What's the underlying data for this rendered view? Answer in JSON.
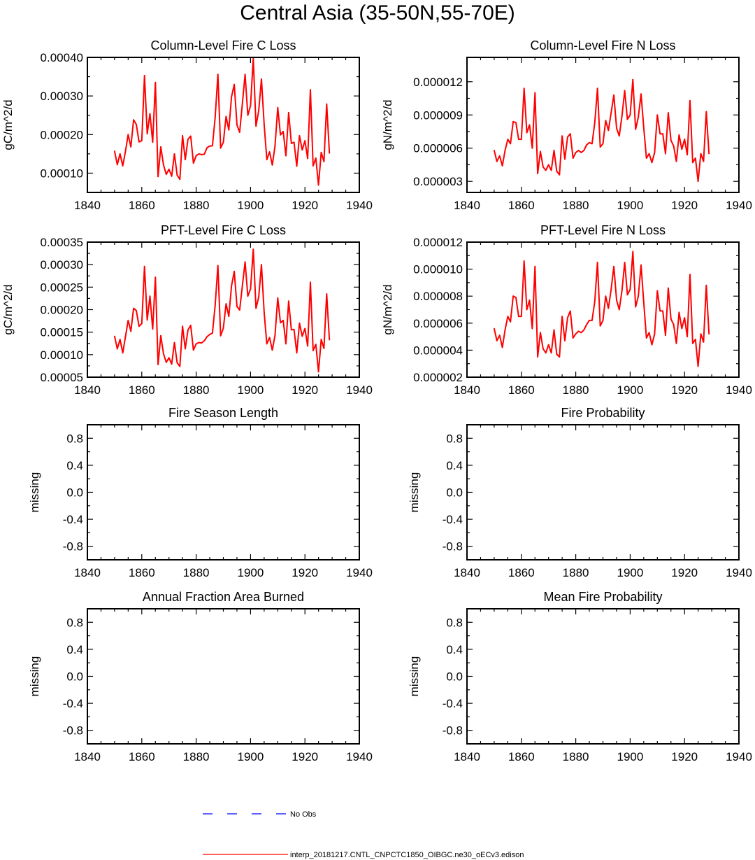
{
  "title": "Central Asia (35-50N,55-70E)",
  "colors": {
    "model": "#ff0000",
    "obs": "#0000ff",
    "axis": "#000000"
  },
  "legend": {
    "obs_label": "No Obs",
    "model_label": "interp_20181217.CNTL_CNPCTC1850_OIBGC.ne30_oECv3.edison"
  },
  "chart_data": [
    {
      "type": "line",
      "title": "Column-Level Fire C Loss",
      "ylabel": "gC/m^2/d",
      "xlim": [
        1840,
        1940
      ],
      "ylim": [
        5e-05,
        0.0004
      ],
      "xticks": [
        1840,
        1860,
        1880,
        1900,
        1920,
        1940
      ],
      "xtick_labels": [
        "1840",
        "1860",
        "1880",
        "1900",
        "1920",
        "1940"
      ],
      "yticks": [
        0.0001,
        0.0002,
        0.0003,
        0.0004
      ],
      "ytick_labels": [
        "0.00010",
        "0.00020",
        "0.00030",
        "0.00040"
      ],
      "series": [
        {
          "name": "interp_20181217.CNTL_CNPCTC1850_OIBGC.ne30_oECv3.edison",
          "x": [
            1850,
            1851,
            1852,
            1853,
            1854,
            1855,
            1856,
            1857,
            1858,
            1859,
            1860,
            1861,
            1862,
            1863,
            1864,
            1865,
            1866,
            1867,
            1868,
            1869,
            1870,
            1871,
            1872,
            1873,
            1874,
            1875,
            1876,
            1877,
            1878,
            1879,
            1880,
            1881,
            1882,
            1883,
            1884,
            1885,
            1886,
            1887,
            1888,
            1889,
            1890,
            1891,
            1892,
            1893,
            1894,
            1895,
            1896,
            1897,
            1898,
            1899,
            1900,
            1901,
            1902,
            1903,
            1904,
            1905,
            1906,
            1907,
            1908,
            1909,
            1910,
            1911,
            1912,
            1913,
            1914,
            1915,
            1916,
            1917,
            1918,
            1919,
            1920,
            1921,
            1922,
            1923,
            1924,
            1925,
            1926,
            1927,
            1928,
            1929
          ],
          "y": [
            0.000157,
            0.000122,
            0.00015,
            0.000119,
            0.000157,
            0.0002,
            0.000168,
            0.000238,
            0.000226,
            0.000181,
            0.000184,
            0.000353,
            0.000202,
            0.000254,
            0.00018,
            0.000335,
            9.1e-05,
            0.000168,
            0.000121,
            9.7e-05,
            0.00011,
            9.2e-05,
            0.00015,
            9.5e-05,
            8.4e-05,
            0.000197,
            0.000135,
            0.000188,
            0.000196,
            0.000126,
            0.000145,
            0.00015,
            0.000148,
            0.000149,
            0.000166,
            0.00017,
            0.000171,
            0.000245,
            0.000356,
            0.000165,
            0.00018,
            0.000247,
            0.000212,
            0.000298,
            0.00033,
            0.000225,
            0.000206,
            0.00028,
            0.000356,
            0.00025,
            0.000275,
            0.000397,
            0.000222,
            0.000262,
            0.000344,
            0.000225,
            0.000135,
            0.000155,
            0.000121,
            0.00017,
            0.00027,
            0.000199,
            0.000208,
            0.000145,
            0.000257,
            0.000177,
            0.00018,
            0.000118,
            0.000197,
            0.00016,
            0.000184,
            0.000138,
            0.000316,
            0.000119,
            0.000139,
            6.9e-05,
            0.000154,
            0.00013,
            0.000279,
            0.000152
          ]
        }
      ]
    },
    {
      "type": "line",
      "title": "Column-Level Fire N Loss",
      "ylabel": "gN/m^2/d",
      "xlim": [
        1840,
        1940
      ],
      "ylim": [
        2e-06,
        1.42e-05
      ],
      "xticks": [
        1840,
        1860,
        1880,
        1900,
        1920,
        1940
      ],
      "xtick_labels": [
        "1840",
        "1860",
        "1880",
        "1900",
        "1920",
        "1940"
      ],
      "yticks": [
        3e-06,
        6e-06,
        9e-06,
        1.2e-05
      ],
      "ytick_labels": [
        "0.000003",
        "0.000006",
        "0.000009",
        "0.000012"
      ],
      "series": [
        {
          "name": "interp_20181217.CNTL_CNPCTC1850_OIBGC.ne30_oECv3.edison",
          "x": [
            1850,
            1851,
            1852,
            1853,
            1854,
            1855,
            1856,
            1857,
            1858,
            1859,
            1860,
            1861,
            1862,
            1863,
            1864,
            1865,
            1866,
            1867,
            1868,
            1869,
            1870,
            1871,
            1872,
            1873,
            1874,
            1875,
            1876,
            1877,
            1878,
            1879,
            1880,
            1881,
            1882,
            1883,
            1884,
            1885,
            1886,
            1887,
            1888,
            1889,
            1890,
            1891,
            1892,
            1893,
            1894,
            1895,
            1896,
            1897,
            1898,
            1899,
            1900,
            1901,
            1902,
            1903,
            1904,
            1905,
            1906,
            1907,
            1908,
            1909,
            1910,
            1911,
            1912,
            1913,
            1914,
            1915,
            1916,
            1917,
            1918,
            1919,
            1920,
            1921,
            1922,
            1923,
            1924,
            1925,
            1926,
            1927,
            1928,
            1929
          ],
          "y": [
            5.8e-06,
            4.8e-06,
            5.3e-06,
            4.4e-06,
            5.8e-06,
            6.8e-06,
            6.4e-06,
            8.4e-06,
            8.3e-06,
            6.8e-06,
            6.8e-06,
            1.14e-05,
            7.4e-06,
            8.1e-06,
            6e-06,
            1.1e-05,
            3.7e-06,
            5.7e-06,
            4.3e-06,
            4e-06,
            4.5e-06,
            4e-06,
            5.8e-06,
            3.9e-06,
            3.6e-06,
            7.1e-06,
            5e-06,
            7e-06,
            7.3e-06,
            5.1e-06,
            5.6e-06,
            5.8e-06,
            5.6e-06,
            5.8e-06,
            6.3e-06,
            6.5e-06,
            6.4e-06,
            8.3e-06,
            1.14e-05,
            6.1e-06,
            6.4e-06,
            8.5e-06,
            7.6e-06,
            9.2e-06,
            1.08e-05,
            7.8e-06,
            7.1e-06,
            8.9e-06,
            1.12e-05,
            8.6e-06,
            9e-06,
            1.22e-05,
            7.7e-06,
            8.8e-06,
            1.09e-05,
            7.8e-06,
            5.1e-06,
            5.5e-06,
            4.7e-06,
            5.6e-06,
            9e-06,
            7.3e-06,
            7.3e-06,
            5.5e-06,
            9.2e-06,
            6.7e-06,
            6.2e-06,
            4.8e-06,
            7.2e-06,
            5.9e-06,
            6.8e-06,
            5.4e-06,
            1.03e-05,
            4.7e-06,
            5.1e-06,
            3e-06,
            5.5e-06,
            4.8e-06,
            9.3e-06,
            5.5e-06
          ]
        }
      ]
    },
    {
      "type": "line",
      "title": "PFT-Level Fire C Loss",
      "ylabel": "gC/m^2/d",
      "xlim": [
        1840,
        1940
      ],
      "ylim": [
        5e-05,
        0.00035
      ],
      "xticks": [
        1840,
        1860,
        1880,
        1900,
        1920,
        1940
      ],
      "xtick_labels": [
        "1840",
        "1860",
        "1880",
        "1900",
        "1920",
        "1940"
      ],
      "yticks": [
        5e-05,
        0.0001,
        0.00015,
        0.0002,
        0.00025,
        0.0003,
        0.00035
      ],
      "ytick_labels": [
        "0.00005",
        "0.00010",
        "0.00015",
        "0.00020",
        "0.00025",
        "0.00030",
        "0.00035"
      ],
      "series": [
        {
          "name": "interp_20181217.CNTL_CNPCTC1850_OIBGC.ne30_oECv3.edison",
          "x": [
            1850,
            1851,
            1852,
            1853,
            1854,
            1855,
            1856,
            1857,
            1858,
            1859,
            1860,
            1861,
            1862,
            1863,
            1864,
            1865,
            1866,
            1867,
            1868,
            1869,
            1870,
            1871,
            1872,
            1873,
            1874,
            1875,
            1876,
            1877,
            1878,
            1879,
            1880,
            1881,
            1882,
            1883,
            1884,
            1885,
            1886,
            1887,
            1888,
            1889,
            1890,
            1891,
            1892,
            1893,
            1894,
            1895,
            1896,
            1897,
            1898,
            1899,
            1900,
            1901,
            1902,
            1903,
            1904,
            1905,
            1906,
            1907,
            1908,
            1909,
            1910,
            1911,
            1912,
            1913,
            1914,
            1915,
            1916,
            1917,
            1918,
            1919,
            1920,
            1921,
            1922,
            1923,
            1924,
            1925,
            1926,
            1927,
            1928,
            1929
          ],
          "y": [
            0.000141,
            0.000113,
            0.000134,
            0.000104,
            0.00014,
            0.000176,
            0.000152,
            0.000203,
            0.000198,
            0.000163,
            0.000169,
            0.000296,
            0.000177,
            0.00023,
            0.000157,
            0.000272,
            7.8e-05,
            0.000142,
            0.000102,
            8.3e-05,
            9.3e-05,
            7.9e-05,
            0.000127,
            8.2e-05,
            7.4e-05,
            0.000163,
            0.000113,
            0.000155,
            0.000165,
            0.00011,
            0.000124,
            0.000127,
            0.000126,
            0.000131,
            0.00014,
            0.000145,
            0.000148,
            0.00021,
            0.000298,
            0.000142,
            0.000159,
            0.000213,
            0.000185,
            0.000253,
            0.000285,
            0.000207,
            0.000199,
            0.000253,
            0.000306,
            0.00023,
            0.000246,
            0.000334,
            0.000203,
            0.000228,
            0.0003,
            0.000193,
            0.000124,
            0.000138,
            0.00011,
            0.000143,
            0.000226,
            0.000171,
            0.000176,
            0.000124,
            0.000219,
            0.000155,
            0.000156,
            0.000104,
            0.00017,
            0.000141,
            0.000158,
            0.000119,
            0.000261,
            0.000109,
            0.000123,
            6.2e-05,
            0.000134,
            0.000114,
            0.000235,
            0.000133
          ]
        }
      ]
    },
    {
      "type": "line",
      "title": "PFT-Level Fire N Loss",
      "ylabel": "gN/m^2/d",
      "xlim": [
        1840,
        1940
      ],
      "ylim": [
        2e-06,
        1.2e-05
      ],
      "xticks": [
        1840,
        1860,
        1880,
        1900,
        1920,
        1940
      ],
      "xtick_labels": [
        "1840",
        "1860",
        "1880",
        "1900",
        "1920",
        "1940"
      ],
      "yticks": [
        2e-06,
        4e-06,
        6e-06,
        8e-06,
        1e-05,
        1.2e-05
      ],
      "ytick_labels": [
        "0.000002",
        "0.000004",
        "0.000006",
        "0.000008",
        "0.000010",
        "0.000012"
      ],
      "series": [
        {
          "name": "interp_20181217.CNTL_CNPCTC1850_OIBGC.ne30_oECv3.edison",
          "x": [
            1850,
            1851,
            1852,
            1853,
            1854,
            1855,
            1856,
            1857,
            1858,
            1859,
            1860,
            1861,
            1862,
            1863,
            1864,
            1865,
            1866,
            1867,
            1868,
            1869,
            1870,
            1871,
            1872,
            1873,
            1874,
            1875,
            1876,
            1877,
            1878,
            1879,
            1880,
            1881,
            1882,
            1883,
            1884,
            1885,
            1886,
            1887,
            1888,
            1889,
            1890,
            1891,
            1892,
            1893,
            1894,
            1895,
            1896,
            1897,
            1898,
            1899,
            1900,
            1901,
            1902,
            1903,
            1904,
            1905,
            1906,
            1907,
            1908,
            1909,
            1910,
            1911,
            1912,
            1913,
            1914,
            1915,
            1916,
            1917,
            1918,
            1919,
            1920,
            1921,
            1922,
            1923,
            1924,
            1925,
            1926,
            1927,
            1928,
            1929
          ],
          "y": [
            5.6e-06,
            4.7e-06,
            5.1e-06,
            4.2e-06,
            5.5e-06,
            6.5e-06,
            6.1e-06,
            8e-06,
            7.9e-06,
            6.5e-06,
            6.5e-06,
            1.06e-05,
            7e-06,
            7.7e-06,
            5.6e-06,
            1.02e-05,
            3.5e-06,
            5.3e-06,
            4.1e-06,
            3.8e-06,
            4.4e-06,
            3.8e-06,
            5.5e-06,
            3.7e-06,
            3.5e-06,
            6.5e-06,
            4.7e-06,
            6.4e-06,
            6.9e-06,
            4.9e-06,
            5.2e-06,
            5.4e-06,
            5.3e-06,
            5.5e-06,
            5.9e-06,
            6.2e-06,
            6.2e-06,
            7.6e-06,
            1.05e-05,
            5.8e-06,
            6.2e-06,
            8e-06,
            7.1e-06,
            8.5e-06,
            1.02e-05,
            7.7e-06,
            7e-06,
            8.4e-06,
            1.05e-05,
            8.1e-06,
            8.5e-06,
            1.13e-05,
            7.2e-06,
            8e-06,
            1.03e-05,
            7.5e-06,
            4.9e-06,
            5.3e-06,
            4.4e-06,
            5.2e-06,
            8.4e-06,
            6.9e-06,
            6.9e-06,
            5.1e-06,
            8.6e-06,
            6.3e-06,
            5.9e-06,
            4.5e-06,
            6.8e-06,
            5.6e-06,
            6.4e-06,
            5e-06,
            9.6e-06,
            4.5e-06,
            4.8e-06,
            2.8e-06,
            5.2e-06,
            4.6e-06,
            8.8e-06,
            5.2e-06
          ]
        }
      ]
    },
    {
      "type": "line",
      "title": "Fire Season Length",
      "ylabel": "missing",
      "xlim": [
        1840,
        1940
      ],
      "ylim": [
        -1.0,
        1.0
      ],
      "xticks": [
        1840,
        1860,
        1880,
        1900,
        1920,
        1940
      ],
      "xtick_labels": [
        "1840",
        "1860",
        "1880",
        "1900",
        "1920",
        "1940"
      ],
      "yticks": [
        -0.8,
        -0.4,
        0.0,
        0.4,
        0.8
      ],
      "ytick_labels": [
        "-0.8",
        "-0.4",
        "0.0",
        "0.4",
        "0.8"
      ],
      "series": []
    },
    {
      "type": "line",
      "title": "Fire Probability",
      "ylabel": "missing",
      "xlim": [
        1840,
        1940
      ],
      "ylim": [
        -1.0,
        1.0
      ],
      "xticks": [
        1840,
        1860,
        1880,
        1900,
        1920,
        1940
      ],
      "xtick_labels": [
        "1840",
        "1860",
        "1880",
        "1900",
        "1920",
        "1940"
      ],
      "yticks": [
        -0.8,
        -0.4,
        0.0,
        0.4,
        0.8
      ],
      "ytick_labels": [
        "-0.8",
        "-0.4",
        "0.0",
        "0.4",
        "0.8"
      ],
      "series": []
    },
    {
      "type": "line",
      "title": "Annual Fraction Area Burned",
      "ylabel": "missing",
      "xlim": [
        1840,
        1940
      ],
      "ylim": [
        -1.0,
        1.0
      ],
      "xticks": [
        1840,
        1860,
        1880,
        1900,
        1920,
        1940
      ],
      "xtick_labels": [
        "1840",
        "1860",
        "1880",
        "1900",
        "1920",
        "1940"
      ],
      "yticks": [
        -0.8,
        -0.4,
        0.0,
        0.4,
        0.8
      ],
      "ytick_labels": [
        "-0.8",
        "-0.4",
        "0.0",
        "0.4",
        "0.8"
      ],
      "series": []
    },
    {
      "type": "line",
      "title": "Mean Fire Probability",
      "ylabel": "missing",
      "xlim": [
        1840,
        1940
      ],
      "ylim": [
        -1.0,
        1.0
      ],
      "xticks": [
        1840,
        1860,
        1880,
        1900,
        1920,
        1940
      ],
      "xtick_labels": [
        "1840",
        "1860",
        "1880",
        "1900",
        "1920",
        "1940"
      ],
      "yticks": [
        -0.8,
        -0.4,
        0.0,
        0.4,
        0.8
      ],
      "ytick_labels": [
        "-0.8",
        "-0.4",
        "0.0",
        "0.4",
        "0.8"
      ],
      "series": []
    }
  ]
}
